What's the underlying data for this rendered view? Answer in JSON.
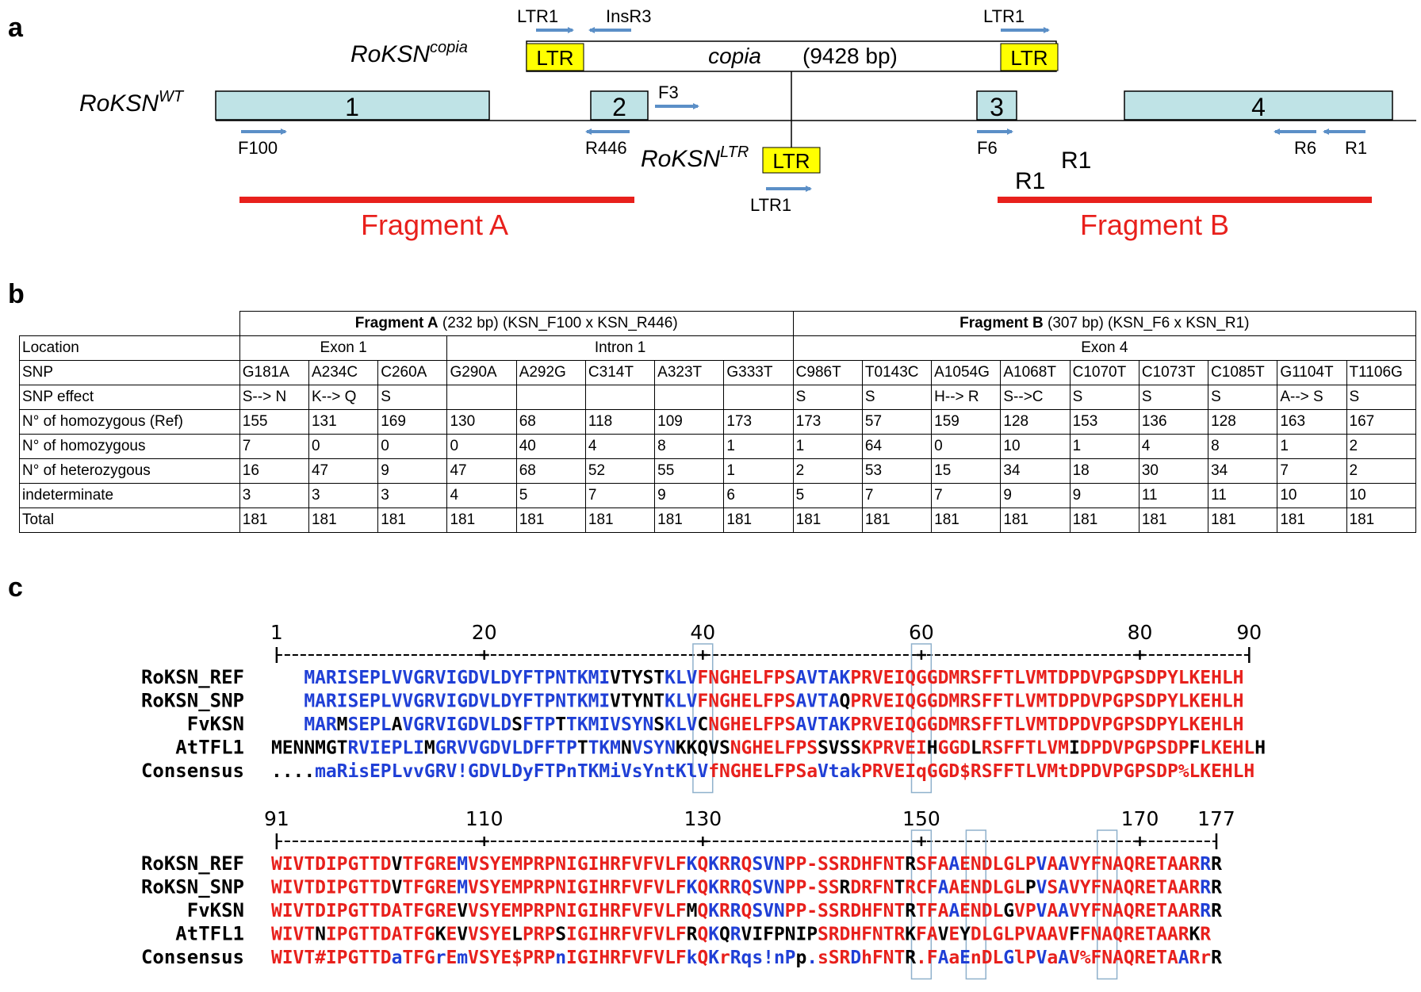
{
  "panels": {
    "a": "a",
    "b": "b",
    "c": "c"
  },
  "colors": {
    "exon": "#bfe3e6",
    "ltr": "#ffff00",
    "primer": "#5b8fc7",
    "fragment": "#e8201c",
    "aa_red": "#e8201c",
    "aa_blue": "#1f3fd6",
    "aa_black": "#000000",
    "box": "#8fb1cc"
  },
  "diagram": {
    "copia_label": "RoKSN",
    "copia_sup": "copia",
    "copia_text": "copia",
    "copia_len": "(9428 bp)",
    "wt_label": "RoKSN",
    "wt_sup": "WT",
    "ltr_label": "RoKSN",
    "ltr_sup": "LTR",
    "ltr_box": "LTR",
    "exons": [
      "1",
      "2",
      "3",
      "4"
    ],
    "primers": {
      "ltr1_top_left": "LTR1",
      "insr3": "InsR3",
      "ltr1_top_right": "LTR1",
      "f3": "F3",
      "f100": "F100",
      "r446": "R446",
      "ltr1_bottom": "LTR1",
      "f6": "F6",
      "r6": "R6",
      "r1": "R1",
      "r1_mid": "R1",
      "r1_mid2": "R1"
    },
    "fragment_a": "Fragment A",
    "fragment_b": "Fragment B"
  },
  "table": {
    "frag_a_title": "Fragment A",
    "frag_a_rest": " (232 bp) (KSN_F100 x KSN_R446)",
    "frag_b_title": "Fragment B",
    "frag_b_rest": " (307 bp) (KSN_F6 x KSN_R1)",
    "location_label": "Location",
    "exon1": "Exon 1",
    "intron1": "Intron 1",
    "exon4": "Exon 4",
    "rows": [
      {
        "label": "SNP",
        "cells": [
          "G181A",
          "A234C",
          "C260A",
          "G290A",
          "A292G",
          "C314T",
          "A323T",
          "G333T",
          "C986T",
          "T0143C",
          "A1054G",
          "A1068T",
          "C1070T",
          "C1073T",
          "C1085T",
          "G1104T",
          "T1106G"
        ]
      },
      {
        "label": "SNP effect",
        "cells": [
          "S--> N",
          "K--> Q",
          "S",
          "",
          "",
          "",
          "",
          "",
          "S",
          "S",
          "H--> R",
          "S-->C",
          "S",
          "S",
          "S",
          "A--> S",
          "S"
        ]
      },
      {
        "label": "N° of homozygous (Ref)",
        "cells": [
          "155",
          "131",
          "169",
          "130",
          "68",
          "118",
          "109",
          "173",
          "173",
          "57",
          "159",
          "128",
          "153",
          "136",
          "128",
          "163",
          "167"
        ]
      },
      {
        "label": "N° of homozygous",
        "cells": [
          "7",
          "0",
          "0",
          "0",
          "40",
          "4",
          "8",
          "1",
          "1",
          "64",
          "0",
          "10",
          "1",
          "4",
          "8",
          "1",
          "2"
        ]
      },
      {
        "label": "N° of heterozygous",
        "cells": [
          "16",
          "47",
          "9",
          "47",
          "68",
          "52",
          "55",
          "1",
          "2",
          "53",
          "15",
          "34",
          "18",
          "30",
          "34",
          "7",
          "2"
        ]
      },
      {
        "label": "indeterminate",
        "cells": [
          "3",
          "3",
          "3",
          "4",
          "5",
          "7",
          "9",
          "6",
          "5",
          "7",
          "7",
          "9",
          "9",
          "11",
          "11",
          "10",
          "10"
        ]
      },
      {
        "label": "Total",
        "cells": [
          "181",
          "181",
          "181",
          "181",
          "181",
          "181",
          "181",
          "181",
          "181",
          "181",
          "181",
          "181",
          "181",
          "181",
          "181",
          "181",
          "181"
        ]
      }
    ]
  },
  "alignment": {
    "blocks": [
      {
        "ruler": [
          "1",
          "20",
          "40",
          "60",
          "80",
          "90"
        ],
        "sequences": [
          {
            "name": "RoKSN_REF",
            "seq": "   MARISEPLVVGRVIGDVLDYFTPNTKMIVTYSTKLVFNGHELFPSAVTAKPRVEIQGGDMRSFFTLVMTDPDVPGPSDPYLKEHLH",
            "colors": "   BBBBBBBBBBBBBBBBBBBBBBBBBBBBKKKKKBBBRRRRRRRRRBBBBBRRRRRRRRRRRRRRRRRRRRRRRRRRRRRRRRRRRRR"
          },
          {
            "name": "RoKSN_SNP",
            "seq": "   MARISEPLVVGRVIGDVLDYFTPNTKMIVTYNTKLVFNGHELFPSAVTAQPRVEIQGGDMRSFFTLVMTDPDVPGPSDPYLKEHLH",
            "colors": "   BBBBBBBBBBBBBBBBBBBBBBBBBBBBKKKKKBBBRRRRRRRRRBBBBKRRRRRRRRRRRRRRRRRRRRRRRRRRRRRRRRRRRRR"
          },
          {
            "name": "FvKSN",
            "seq": "   MARMSEPLAVGRVIGDVLDSFTPTTKMIVSYNSKLVCNGHELFPSAVTAKPRVEIQGGDMRSFFTLVMTDPDVPGPSDPYLKEHLH",
            "colors": "   BBBKBBBBKBBBBBBBBBBKBBBKBBBBBBBBKBBBKRRRRRRRRBBBBBRRRRRRRRRRRRRRRRRRRRRRRRRRRRRRRRRRRRR"
          },
          {
            "name": "AtTFL1",
            "seq": "MENNMGTRVIEPLIMGRVVGDVLDFFTPTTKMNVSYNKKQVSNGHELFPSSVSSKPRVEIHGGDLRSFFTLVMIDPDVPGPSDPFLKEHLH",
            "colors": "KKKKKKKBBBBBBBKBBBBBBBBBBBBBKBBBKBBBBKKKKKRRRRRRRRKKKKRRRRRRKRRRKRRRRRRRRKRRRRRRRRRRKRRRRR"
          },
          {
            "name": "Consensus",
            "seq": "....maRisEPLvvGRV!GDVLDyFTPnTKMiVsYntKlVfNGHELFPSaVtakPRVEIqGGD$RSFFTLVMtDPDVPGPSDP%LKEHLH",
            "colors": "KKKKBBBBBBBBBBBBBBBBBBBBBBBBBBBBBBBBBBBBRRRRRRRRRRBBBBRRRRRRRRRRRRRRRRRRRRRRRRRRRRRRRRRRRRR"
          }
        ]
      },
      {
        "ruler": [
          "91",
          "110",
          "130",
          "150",
          "170",
          "177"
        ],
        "sequences": [
          {
            "name": "RoKSN_REF",
            "seq": "WIVTDIPGTTDVTFGREMVSYEMPRPNIGIHRFVFVLFKQKRRQSVNPP-SSRDHFNTRSFAAENDLGLPVAAVYFNAQRETAARRR",
            "colors": "RRRRRRRRRRRKRRRRRBRRRRRRRRRRRRRRRRRRRRBRBRBRBBBRRRRRRRRRRRKRRRBRRRRRRRBRBRRRRRRRRRRRRB"
          },
          {
            "name": "RoKSN_SNP",
            "seq": "WIVTDIPGTTDVTFGREMVSYEMPRPNIGIHRFVFVLFKQKRRQSVNPP-SSRDRFNTRCFAAENDLGLPVSAVYFNAQRETAARRR",
            "colors": "RRRRRRRRRRRKRRRRRBRRRRRRRRRRRRRRRRRRRRBRBRBRBBBRRRRRKRRRRKRRRBRRRRRRRKBRBRRRRRRRRRRRRB"
          },
          {
            "name": "FvKSN",
            "seq": "WIVTDIPGTTDATFGREVVSYEMPRPNIGIHRFVFVLFMQKRRQSVNPP-SSRDHFNTRTFAAENDLGVPVAAVYFNAQRETAARRR",
            "colors": "RRRRRRRRRRRRRRRRRKRRRRRRRRRRRRRRRRRRRRKRBRBRBBBRRRRRRRRRRRKRRRBRRRRKRRBRBRRRRRRRRRRRRB"
          },
          {
            "name": "AtTFL1",
            "seq": "WIVTNIPGTTDATFGKEVVSYELPRPSIGIHRFVFVLFRQKQRVIFPNIPSRDHFNTRKFAVEYDLGLPVAAVFFNAQRETAARKR",
            "colors": "RRRRKRRRRRRRRRRKRKRRRRKRRRKRRRRRRRRRRRKRBKBKKKKKKKRRRRRRRRKRRKRKRRRRRRRRRKRRRRRRRRRRKR"
          },
          {
            "name": "Consensus",
            "seq": "WIVT#IPGTTDaTFGrEmVSYE$PRPnIGIHRFVFVLFkQKrRqs!nPp.sSRDhFNTR.FAaEnDLGlPVaAV%FNAQRETAARrR",
            "colors": "RRRRRRRRRRRBRRRBRBRRRRRRRRBRRRRRRRRRRRBRBRBBBBBBKBRRRBRRRRKRRBRBRRRBRRBRBRRRRRRRRRRBRR"
          }
        ]
      }
    ]
  }
}
